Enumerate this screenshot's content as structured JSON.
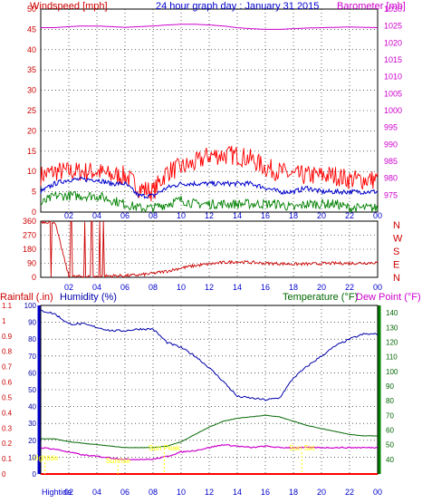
{
  "header": {
    "windspeed_label": "Windspeed [mph]",
    "title": "24 hour graph day : January 31 2015",
    "barometer_label": "Barometer [mb]"
  },
  "colors": {
    "wind_gust": "#ff0000",
    "wind_avg": "#0000cc",
    "wind_low": "#008000",
    "barometer": "#cc00cc",
    "direction": "#cc0000",
    "humidity": "#0000aa",
    "temperature": "#006600",
    "dewpoint": "#cc00cc",
    "rainfall": "#ff0000",
    "markers": "#ffff00",
    "grid": "#000000"
  },
  "x_axis": {
    "labels": [
      "02",
      "04",
      "06",
      "08",
      "10",
      "12",
      "14",
      "16",
      "18",
      "20",
      "22",
      "00"
    ],
    "bottom_prefix": "Hightide"
  },
  "chart_data": [
    {
      "type": "line",
      "title": "24 hour graph day : January 31 2015",
      "ylabel": "Windspeed [mph]",
      "y2label": "Barometer [mb]",
      "ylim": [
        0,
        50
      ],
      "y2lim": [
        970,
        1030
      ],
      "y_ticks": [
        0,
        5,
        10,
        15,
        20,
        25,
        30,
        35,
        40,
        45,
        50
      ],
      "y2_ticks": [
        975,
        980,
        985,
        990,
        995,
        1000,
        1005,
        1010,
        1015,
        1020,
        1025,
        1030
      ],
      "x_hours": [
        0,
        1,
        2,
        3,
        4,
        5,
        6,
        7,
        8,
        9,
        10,
        11,
        12,
        13,
        14,
        15,
        16,
        17,
        18,
        19,
        20,
        21,
        22,
        23,
        24
      ],
      "series": [
        {
          "name": "Windspeed gust",
          "values": [
            9,
            10,
            10,
            10,
            10,
            9,
            9,
            6,
            5,
            10,
            11,
            12,
            14,
            14,
            14,
            13,
            11,
            10,
            9,
            9,
            9,
            9,
            8,
            8,
            8
          ]
        },
        {
          "name": "Windspeed average",
          "values": [
            5,
            7,
            8,
            8,
            8,
            7,
            7,
            4,
            4,
            6,
            7,
            7,
            7,
            7,
            7,
            7,
            6,
            5,
            5,
            6,
            5,
            5,
            5,
            5,
            5
          ]
        },
        {
          "name": "Windspeed low",
          "values": [
            2,
            4,
            4,
            4,
            4,
            3,
            2,
            1,
            1,
            2,
            3,
            2,
            2,
            2,
            2,
            2,
            2,
            2,
            1,
            2,
            2,
            2,
            1,
            1,
            1
          ]
        },
        {
          "name": "Barometer",
          "values": [
            1024.5,
            1024.5,
            1024.8,
            1025,
            1025,
            1024.8,
            1024.6,
            1024.8,
            1025,
            1025.3,
            1025.5,
            1025.5,
            1025.3,
            1025,
            1024.5,
            1024.2,
            1024,
            1024,
            1024.2,
            1024.4,
            1024.5,
            1024.6,
            1024.7,
            1024.6,
            1024.5
          ]
        }
      ]
    },
    {
      "type": "line",
      "ylabel": "Wind direction",
      "ylim": [
        0,
        360
      ],
      "y_ticks": [
        0,
        90,
        180,
        270,
        360
      ],
      "compass_labels": [
        "N",
        "W",
        "S",
        "E",
        "N"
      ],
      "x_hours": [
        0,
        1,
        2,
        3,
        4,
        5,
        6,
        7,
        8,
        9,
        10,
        11,
        12,
        13,
        14,
        15,
        16,
        17,
        18,
        19,
        20,
        21,
        22,
        23,
        24
      ],
      "series": [
        {
          "name": "Wind direction",
          "values": [
            355,
            355,
            5,
            5,
            5,
            10,
            10,
            15,
            25,
            40,
            60,
            75,
            85,
            95,
            100,
            95,
            90,
            88,
            85,
            85,
            88,
            90,
            90,
            92,
            95
          ]
        }
      ]
    },
    {
      "type": "line",
      "y_left_outer_label": "Rainfall (.in)",
      "y_left_inner_label": "Humidity (%)",
      "y_right_label": "Temperature (°F)",
      "y_right2_label": "Dew Point (°F)",
      "rain_lim": [
        0,
        1.1
      ],
      "rain_ticks": [
        0,
        0.1,
        0.2,
        0.3,
        0.4,
        0.5,
        0.6,
        0.7,
        0.8,
        0.9,
        1,
        1.1
      ],
      "humidity_lim": [
        0,
        100
      ],
      "humidity_ticks": [
        0,
        10,
        20,
        30,
        40,
        50,
        60,
        70,
        80,
        90,
        100
      ],
      "temp_lim": [
        30,
        145
      ],
      "temp_ticks": [
        40,
        50,
        60,
        70,
        80,
        90,
        100,
        110,
        120,
        130,
        140
      ],
      "x_hours": [
        0,
        1,
        2,
        3,
        4,
        5,
        6,
        7,
        8,
        9,
        10,
        11,
        12,
        13,
        14,
        15,
        16,
        17,
        18,
        19,
        20,
        21,
        22,
        23,
        24
      ],
      "series": [
        {
          "name": "Humidity",
          "values": [
            97,
            95,
            89,
            89,
            87,
            85,
            85,
            86,
            86,
            78,
            75,
            70,
            63,
            55,
            46,
            45,
            44,
            45,
            57,
            64,
            70,
            76,
            80,
            83,
            83
          ]
        },
        {
          "name": "Temperature",
          "values": [
            54,
            54,
            52,
            51,
            50,
            49,
            48,
            48,
            48,
            49,
            52,
            57,
            62,
            66,
            68,
            69,
            70,
            69,
            66,
            63,
            61,
            59,
            57,
            56,
            56
          ]
        },
        {
          "name": "Dew Point",
          "values": [
            48,
            47,
            45,
            43,
            42,
            41,
            40,
            40,
            40,
            42,
            45,
            46,
            48,
            50,
            49,
            48,
            49,
            48,
            48,
            48,
            48,
            48,
            48,
            48,
            48
          ]
        },
        {
          "name": "Rainfall",
          "values": [
            0,
            0,
            0,
            0,
            0,
            0,
            0,
            0,
            0,
            0,
            0,
            0,
            0,
            0,
            0,
            0,
            0,
            0,
            0,
            0,
            0,
            0,
            0,
            0,
            0
          ]
        }
      ],
      "annotations": [
        {
          "text": "Hightide",
          "hour": 0.3
        },
        {
          "text": "Sunrise",
          "hour": 5.5
        },
        {
          "text": "Sun Peak",
          "hour": 8.8
        },
        {
          "text": "Sun Set",
          "hour": 18.6
        }
      ]
    }
  ]
}
